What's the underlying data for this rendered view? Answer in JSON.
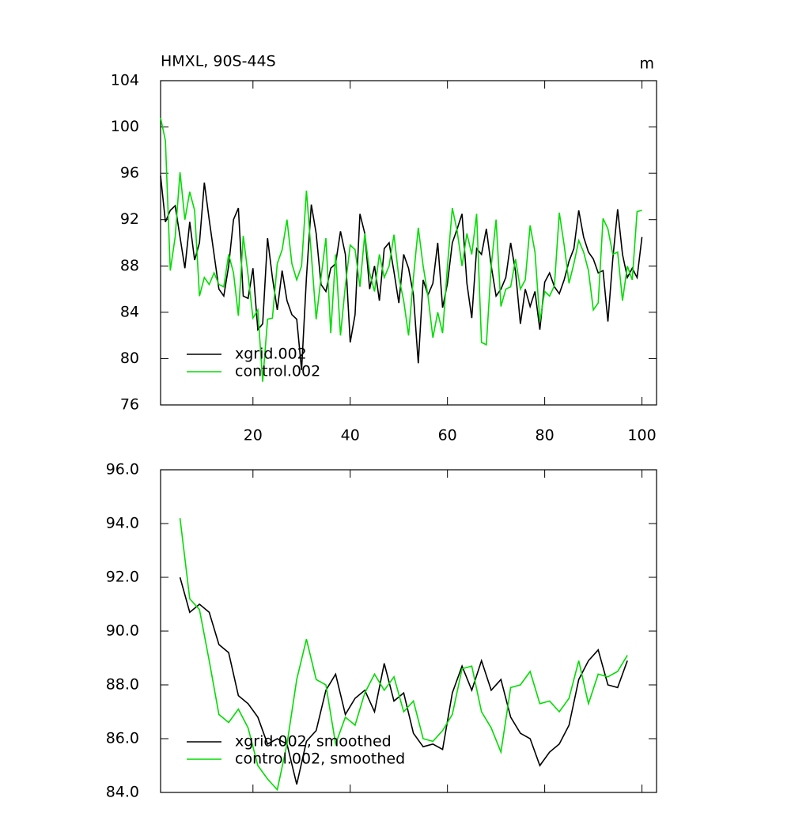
{
  "chart_data": [
    {
      "type": "line",
      "title": "HMXL, 90S-44S",
      "right_title": "m",
      "x": [
        1,
        2,
        3,
        4,
        5,
        6,
        7,
        8,
        9,
        10,
        11,
        12,
        13,
        14,
        15,
        16,
        17,
        18,
        19,
        20,
        21,
        22,
        23,
        24,
        25,
        26,
        27,
        28,
        29,
        30,
        31,
        32,
        33,
        34,
        35,
        36,
        37,
        38,
        39,
        40,
        41,
        42,
        43,
        44,
        45,
        46,
        47,
        48,
        49,
        50,
        51,
        52,
        53,
        54,
        55,
        56,
        57,
        58,
        59,
        60,
        61,
        62,
        63,
        64,
        65,
        66,
        67,
        68,
        69,
        70,
        71,
        72,
        73,
        74,
        75,
        76,
        77,
        78,
        79,
        80,
        81,
        82,
        83,
        84,
        85,
        86,
        87,
        88,
        89,
        90,
        91,
        92,
        93,
        94,
        95,
        96,
        97,
        98,
        99,
        100
      ],
      "series": [
        {
          "name": "xgrid.002",
          "color": "#000000",
          "values": [
            95.8,
            91.8,
            92.8,
            93.2,
            90.5,
            87.8,
            91.8,
            88.5,
            90,
            95.2,
            92,
            89,
            86,
            85.4,
            88,
            92,
            93,
            85.4,
            85.2,
            87.8,
            82.5,
            83,
            90.4,
            87,
            84.2,
            87.6,
            85,
            83.8,
            83.4,
            79,
            87,
            93.3,
            90.8,
            86.4,
            85.8,
            87.8,
            88.2,
            91,
            89,
            81.4,
            83.8,
            92.5,
            90.8,
            86,
            88,
            85,
            89.5,
            90,
            87.5,
            84.8,
            89,
            87.8,
            85.5,
            79.6,
            86.8,
            85.5,
            86.5,
            90,
            84.4,
            86.5,
            90,
            91.2,
            92.5,
            86.5,
            83.5,
            89.5,
            89,
            91.2,
            88,
            85.4,
            86,
            87,
            90,
            87.5,
            83,
            86,
            84.5,
            85.8,
            82.5,
            86.6,
            87.4,
            86.2,
            85.6,
            86.8,
            88.4,
            89.5,
            92.8,
            90.5,
            89.2,
            88.6,
            87.4,
            87.6,
            83.2,
            88.6,
            92.9,
            89,
            87,
            87.8,
            87,
            90.5
          ]
        },
        {
          "name": "control.002",
          "color": "#00dd00",
          "values": [
            100.8,
            98.8,
            87.6,
            90.5,
            96.1,
            92,
            94.4,
            92.8,
            85.4,
            87,
            86.4,
            87.4,
            86.4,
            86.2,
            89,
            87.4,
            83.7,
            90.6,
            87.2,
            83.5,
            84.2,
            78,
            83.4,
            83.5,
            88.2,
            89.4,
            92,
            88.2,
            86.8,
            88,
            94.5,
            89,
            83.4,
            87,
            90.4,
            82.2,
            89,
            82,
            86.3,
            89.8,
            89.4,
            86.2,
            90.8,
            87.4,
            85.8,
            89,
            87,
            88,
            90.7,
            87,
            85,
            82,
            87,
            91.3,
            88,
            85.4,
            81.8,
            84,
            82.2,
            88,
            93,
            91,
            88,
            90.8,
            89,
            92.5,
            81.4,
            81.2,
            88,
            92,
            84.5,
            86,
            86.2,
            88.6,
            86,
            86.8,
            91.5,
            89.2,
            83.2,
            85.8,
            85.4,
            86.3,
            92.6,
            89.8,
            86.5,
            88.2,
            90.2,
            89.2,
            87.6,
            84.2,
            84.8,
            92.1,
            91.2,
            89,
            89.2,
            85,
            88,
            86.8,
            92.7,
            92.8
          ]
        }
      ],
      "xlim": [
        1,
        103
      ],
      "xticks": [
        20,
        40,
        60,
        80,
        100
      ],
      "ylim": [
        76,
        104
      ],
      "yticks": [
        76,
        80,
        84,
        88,
        92,
        96,
        100,
        104
      ],
      "legend": "lower left",
      "grid": false,
      "show_xtick_labels": true
    },
    {
      "type": "line",
      "x": [
        5,
        7,
        9,
        11,
        13,
        15,
        17,
        19,
        21,
        23,
        25,
        27,
        29,
        31,
        33,
        35,
        37,
        39,
        41,
        43,
        45,
        47,
        49,
        51,
        53,
        55,
        57,
        59,
        61,
        63,
        65,
        67,
        69,
        71,
        73,
        75,
        77,
        79,
        81,
        83,
        85,
        87,
        89,
        91,
        93,
        95,
        97
      ],
      "series": [
        {
          "name": "xgrid.002, smoothed",
          "color": "#000000",
          "values": [
            92.0,
            90.7,
            91.0,
            90.7,
            89.5,
            89.2,
            87.6,
            87.3,
            86.8,
            85.8,
            86.0,
            85.8,
            84.3,
            85.9,
            86.3,
            87.8,
            88.4,
            86.9,
            87.5,
            87.8,
            87.0,
            88.8,
            87.4,
            87.7,
            86.2,
            85.7,
            85.8,
            85.6,
            87.7,
            88.7,
            87.8,
            88.9,
            87.8,
            88.2,
            86.8,
            86.2,
            86.0,
            85.0,
            85.5,
            85.8,
            86.5,
            88.2,
            88.9,
            89.3,
            88.0,
            87.9,
            88.9
          ]
        },
        {
          "name": "control.002, smoothed",
          "color": "#00dd00",
          "values": [
            94.2,
            91.2,
            90.8,
            88.9,
            86.9,
            86.6,
            87.1,
            86.4,
            85.0,
            84.5,
            84.1,
            85.8,
            88.2,
            89.7,
            88.2,
            88.0,
            85.8,
            86.8,
            86.5,
            87.7,
            88.4,
            87.8,
            88.3,
            87.0,
            87.4,
            86.0,
            85.9,
            86.3,
            86.9,
            88.6,
            88.7,
            87.0,
            86.4,
            85.5,
            87.9,
            88.0,
            88.5,
            87.3,
            87.4,
            87.0,
            87.5,
            88.9,
            87.3,
            88.4,
            88.3,
            88.5,
            89.1
          ]
        }
      ],
      "xlim": [
        1,
        103
      ],
      "xticks": [
        20,
        40,
        60,
        80,
        100
      ],
      "ylim": [
        84,
        96
      ],
      "yticks": [
        {
          "value": 84,
          "label": "84.0"
        },
        {
          "value": 86,
          "label": "86.0"
        },
        {
          "value": 88,
          "label": "88.0"
        },
        {
          "value": 90,
          "label": "90.0"
        },
        {
          "value": 92,
          "label": "92.0"
        },
        {
          "value": 94,
          "label": "94.0"
        },
        {
          "value": 96,
          "label": "96.0"
        }
      ],
      "legend": "lower left",
      "grid": false,
      "show_xtick_labels": false
    }
  ]
}
